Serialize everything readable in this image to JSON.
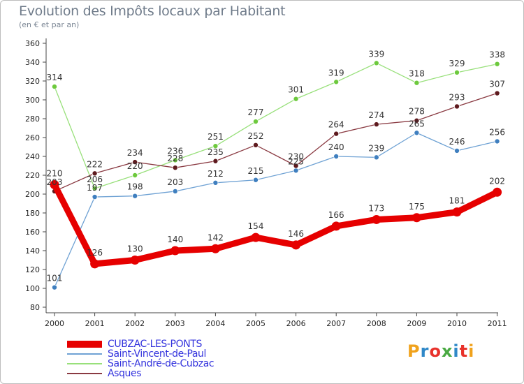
{
  "header": {
    "title": "Evolution des Impôts locaux par Habitant",
    "subtitle": "(en € et par an)"
  },
  "logo": {
    "text": "Proxiti",
    "colors": [
      "#f0a21c",
      "#2f88c8",
      "#e8322b",
      "#49a942",
      "#2f88c8",
      "#e8322b",
      "#f0a21c"
    ]
  },
  "chart_data": {
    "type": "line",
    "title": "Evolution des Impôts locaux par Habitant",
    "subtitle": "(en € et par an)",
    "xlabel": "",
    "ylabel": "",
    "ylim": [
      80,
      360
    ],
    "ytick_step": 20,
    "grid": false,
    "legend": "bottom-left",
    "categories": [
      "2000",
      "2001",
      "2002",
      "2003",
      "2004",
      "2005",
      "2006",
      "2007",
      "2008",
      "2009",
      "2010",
      "2011"
    ],
    "series": [
      {
        "name": "CUBZAC-LES-PONTS",
        "color": "#e60000",
        "marker_color": "#e60000",
        "style": "thick",
        "values": [
          210,
          126,
          130,
          140,
          142,
          154,
          146,
          166,
          173,
          175,
          181,
          202
        ]
      },
      {
        "name": "Saint-Vincent-de-Paul",
        "color": "#6fa2d4",
        "marker_color": "#3f7fbf",
        "style": "thin",
        "values": [
          101,
          197,
          198,
          203,
          212,
          215,
          225,
          240,
          239,
          265,
          246,
          256
        ]
      },
      {
        "name": "Saint-André-de-Cubzac",
        "color": "#98e07a",
        "marker_color": "#6dc93d",
        "style": "thin",
        "values": [
          314,
          206,
          220,
          236,
          251,
          277,
          301,
          319,
          339,
          318,
          329,
          338
        ]
      },
      {
        "name": "Asques",
        "color": "#8a3a42",
        "marker_color": "#5e1a1e",
        "style": "thin",
        "values": [
          203,
          222,
          234,
          228,
          235,
          252,
          230,
          264,
          274,
          278,
          293,
          307
        ]
      }
    ]
  }
}
